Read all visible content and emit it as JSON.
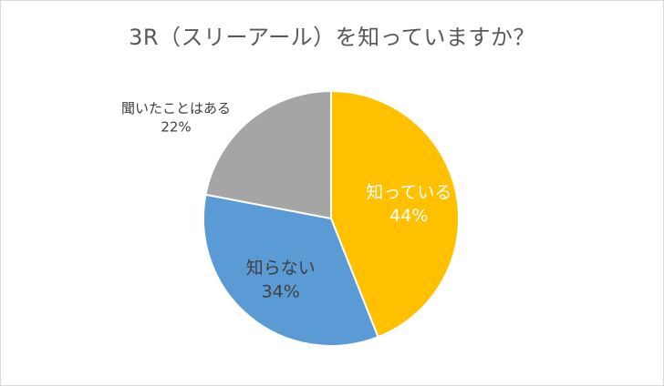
{
  "chart_data": {
    "type": "pie",
    "title": "3R（スリーアール）を知っていますか？",
    "slices": [
      {
        "label": "知っている",
        "value": 44,
        "value_label": "44%",
        "color": "#FFC000",
        "label_color": "#ffffff"
      },
      {
        "label": "知らない",
        "value": 34,
        "value_label": "34%",
        "color": "#5B9BD5",
        "label_color": "#404040"
      },
      {
        "label": "聞いたことはある",
        "value": 22,
        "value_label": "22%",
        "color": "#A5A5A5",
        "label_color": "#404040"
      }
    ],
    "start_angle_deg": 0,
    "direction": "clockwise",
    "legend": "none"
  }
}
